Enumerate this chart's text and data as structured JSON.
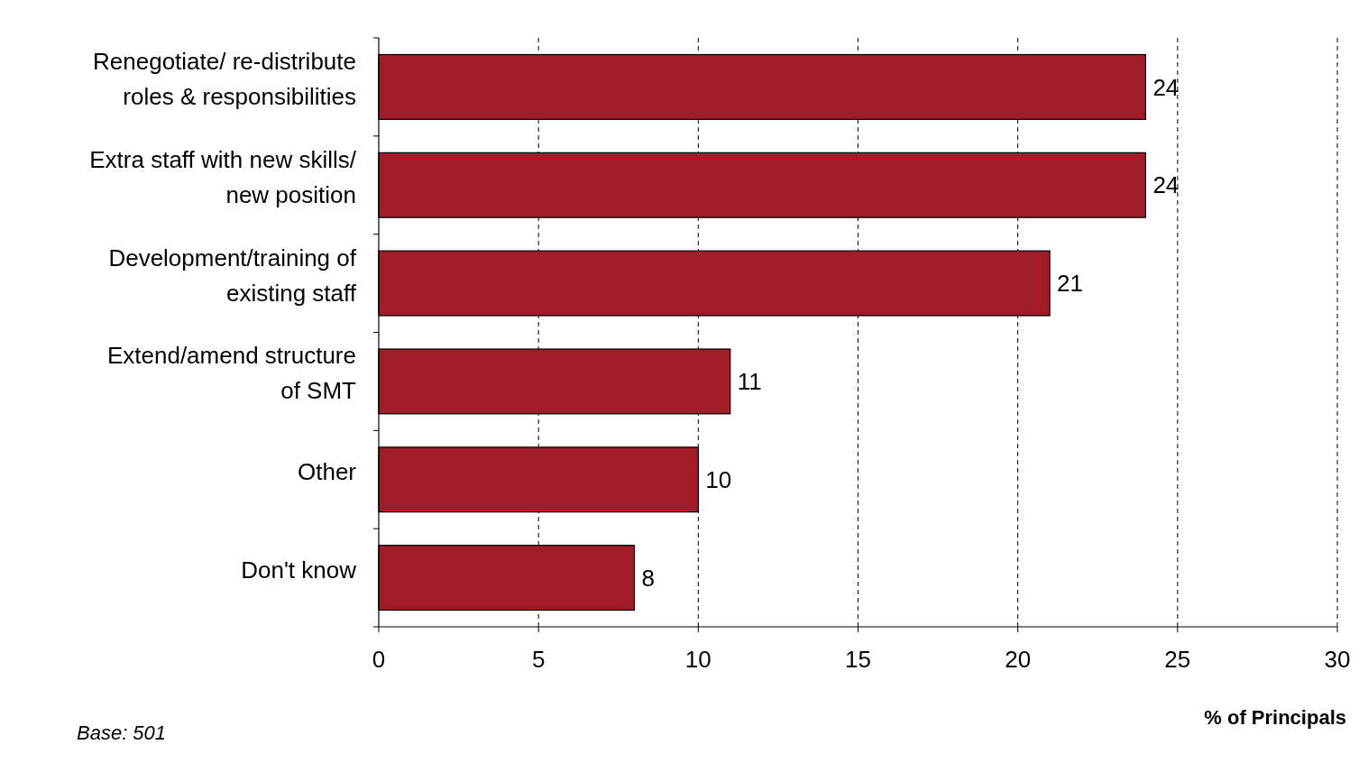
{
  "chart_data": {
    "type": "bar",
    "orientation": "horizontal",
    "categories": [
      "Renegotiate/ re-distribute roles & responsibilities",
      "Extra staff with new skills/ new position",
      "Development/training of existing staff",
      "Extend/amend structure of SMT",
      "Other",
      "Don't know"
    ],
    "values": [
      24,
      24,
      21,
      11,
      10,
      8
    ],
    "color": "#a01c28",
    "xlim": [
      0,
      30
    ],
    "xticks": [
      0,
      5,
      10,
      15,
      20,
      25,
      30
    ],
    "xlabel": "% of Principals",
    "annotations": [
      "Base: 501"
    ],
    "data_labels": true,
    "grid": "x"
  }
}
